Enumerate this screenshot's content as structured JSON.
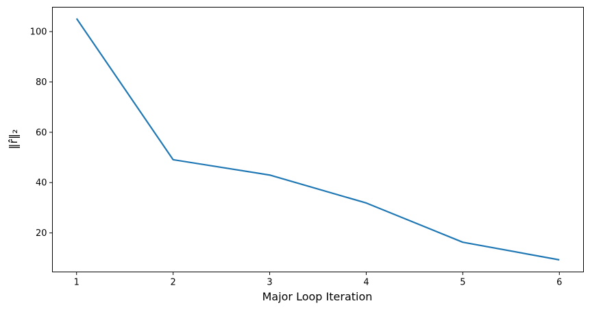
{
  "chart_data": {
    "type": "line",
    "title": "",
    "xlabel": "Major Loop Iteration",
    "ylabel": "‖r̂‖₂",
    "x": [
      1,
      2,
      3,
      4,
      5,
      6
    ],
    "xticks": [
      "1",
      "2",
      "3",
      "4",
      "5",
      "6"
    ],
    "xlim": [
      0.75,
      6.25
    ],
    "yticks": [
      "20",
      "40",
      "60",
      "80",
      "100"
    ],
    "ylim": [
      4.5,
      109.7
    ],
    "grid": false,
    "series": [
      {
        "color": "#1f77b4",
        "values": [
          105.2,
          49.1,
          43.0,
          31.9,
          16.3,
          9.3
        ]
      }
    ]
  }
}
